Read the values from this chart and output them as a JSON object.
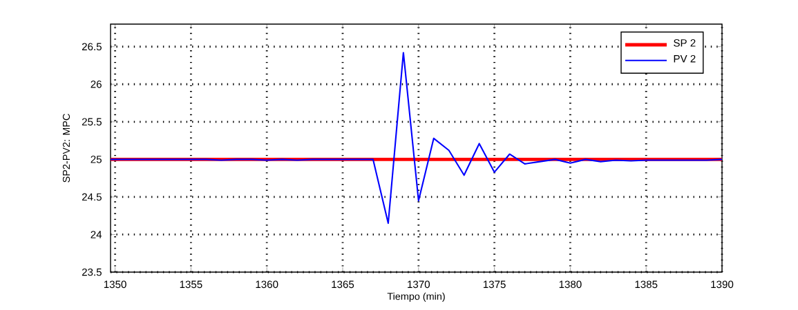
{
  "chart_data": {
    "type": "line",
    "xlabel": "Tiempo (min)",
    "ylabel": "SP2-PV2: MPC",
    "xlim": [
      1349.7,
      1390
    ],
    "ylim": [
      23.5,
      26.8
    ],
    "xticks": [
      1350,
      1355,
      1360,
      1365,
      1370,
      1375,
      1380,
      1385,
      1390
    ],
    "yticks": [
      23.5,
      24,
      24.5,
      25,
      25.5,
      26,
      26.5
    ],
    "grid": true,
    "legend": "top right",
    "line_style": "solid",
    "marker": "none",
    "series": [
      {
        "name": "SP 2",
        "color": "#ff0000",
        "x": [
          1349.7,
          1390
        ],
        "values": [
          25,
          25
        ]
      },
      {
        "name": "PV 2",
        "color": "#0000ff",
        "x": [
          1349.7,
          1356,
          1357,
          1358,
          1359,
          1360,
          1361,
          1362,
          1363,
          1364,
          1365,
          1366,
          1367,
          1368,
          1369,
          1370,
          1371,
          1372,
          1373,
          1374,
          1375,
          1376,
          1377,
          1378,
          1379,
          1380,
          1381,
          1382,
          1383,
          1384,
          1385,
          1386,
          1387,
          1388,
          1389,
          1390
        ],
        "values": [
          25,
          25,
          24.99,
          25,
          25,
          24.99,
          25,
          24.99,
          25,
          25,
          25,
          25,
          25,
          24.15,
          26.42,
          24.45,
          25.28,
          25.12,
          24.79,
          25.21,
          24.83,
          25.07,
          24.94,
          24.97,
          25.0,
          24.95,
          25.0,
          24.97,
          24.99,
          24.98,
          24.99,
          24.99,
          24.99,
          24.99,
          24.99,
          25
        ]
      }
    ]
  }
}
